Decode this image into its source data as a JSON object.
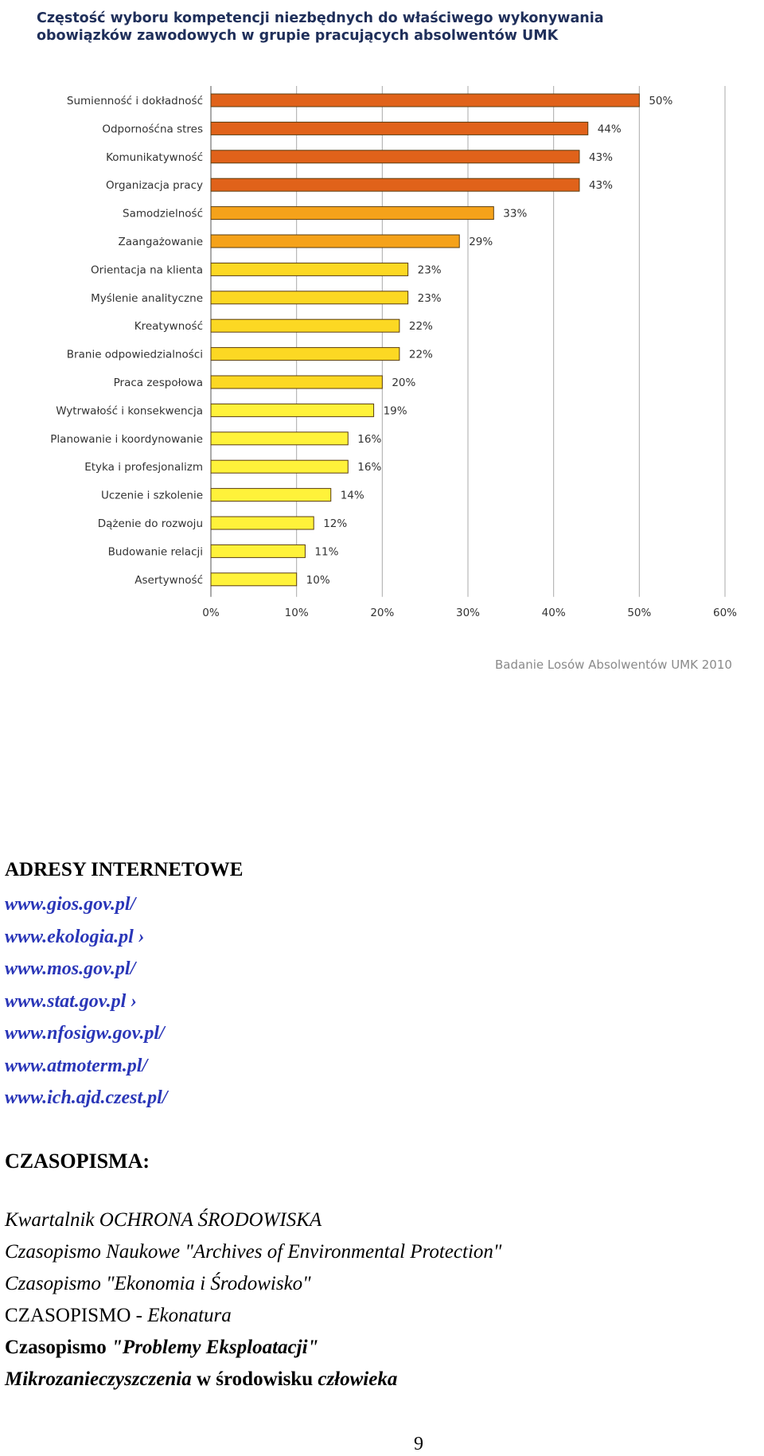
{
  "chart_data": {
    "type": "bar",
    "orientation": "horizontal",
    "title": "Częstość wyboru kompetencji niezbędnych do właściwego wykonywania\nobowiązków zawodowych w grupie pracujących absolwentów UMK",
    "categories": [
      "Sumienność i dokładność",
      "Odpornośćna stres",
      "Komunikatywność",
      "Organizacja pracy",
      "Samodzielność",
      "Zaangażowanie",
      "Orientacja na klienta",
      "Myślenie analityczne",
      "Kreatywność",
      "Branie odpowiedzialności",
      "Praca zespołowa",
      "Wytrwałość i konsekwencja",
      "Planowanie i koordynowanie",
      "Etyka i profesjonalizm",
      "Uczenie i szkolenie",
      "Dążenie do rozwoju",
      "Budowanie relacji",
      "Asertywność"
    ],
    "values": [
      50,
      44,
      43,
      43,
      33,
      29,
      23,
      23,
      22,
      22,
      20,
      19,
      16,
      16,
      14,
      12,
      11,
      10
    ],
    "value_labels": [
      "50%",
      "44%",
      "43%",
      "43%",
      "33%",
      "29%",
      "23%",
      "23%",
      "22%",
      "22%",
      "20%",
      "19%",
      "16%",
      "16%",
      "14%",
      "12%",
      "11%",
      "10%"
    ],
    "xlim": [
      0,
      60
    ],
    "x_ticks": [
      "0%",
      "10%",
      "20%",
      "30%",
      "40%",
      "50%",
      "60%"
    ],
    "grid": true,
    "colors": {
      "high": "#e0621a",
      "mid": "#f5a21a",
      "low": "#fcd823",
      "lowest": "#fff23a",
      "bar_outline": "#5a3d10",
      "grid": "#aaaaaa"
    },
    "source": "Badanie Losów Absolwentów UMK 2010"
  },
  "document": {
    "addresses_heading": "ADRESY INTERNETOWE",
    "links": [
      "www.gios.gov.pl/",
      "www.ekologia.pl ›",
      "www.mos.gov.pl/",
      "www.stat.gov.pl ›",
      "www.nfosigw.gov.pl/",
      "www.atmoterm.pl/",
      "www.ich.ajd.czest.pl/"
    ],
    "journals_heading": "CZASOPISMA:",
    "journals": {
      "j1": "Kwartalnik OCHRONA ŚRODOWISKA",
      "j2": "Czasopismo Naukowe \"Archives of Environmental Protection\"",
      "j3": "Czasopismo \"Ekonomia i Środowisko\"",
      "j4_prefix": "CZASOPISMO - ",
      "j4_name": "Ekonatura",
      "j5_prefix": "Czasopismo ",
      "j5_name": "\"Problemy Eksploatacji\"",
      "j6_a": "Mikrozanieczyszczenia",
      "j6_b": " w środowisku ",
      "j6_c": "człowieka"
    },
    "page_number": "9"
  }
}
